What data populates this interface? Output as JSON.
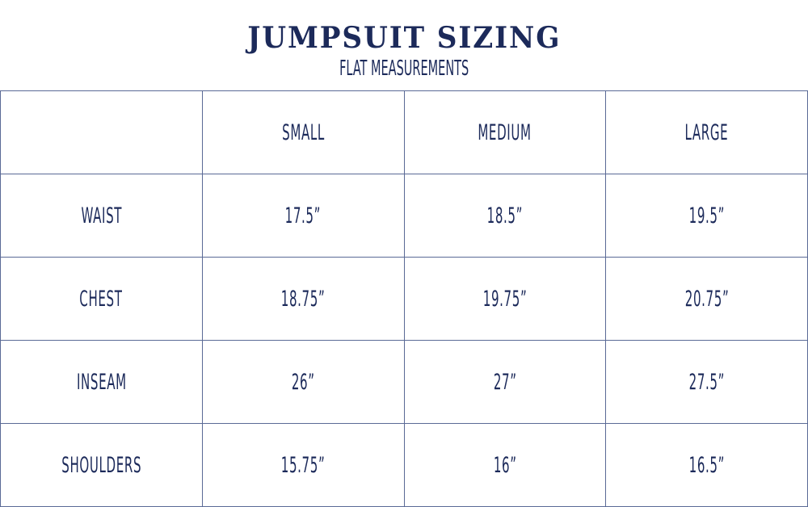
{
  "title": "JUMPSUIT SIZING",
  "subtitle": "FLAT MEASUREMENTS",
  "colors": {
    "text": "#1c2a5a",
    "grid": "#5a6a96"
  },
  "table": {
    "columns": [
      "",
      "SMALL",
      "MEDIUM",
      "LARGE"
    ],
    "rows": [
      {
        "label": "WAIST",
        "values": [
          "17.5”",
          "18.5”",
          "19.5”"
        ]
      },
      {
        "label": "CHEST",
        "values": [
          "18.75”",
          "19.75”",
          "20.75”"
        ]
      },
      {
        "label": "INSEAM",
        "values": [
          "26”",
          "27”",
          "27.5”"
        ]
      },
      {
        "label": "SHOULDERS",
        "values": [
          "15.75”",
          "16”",
          "16.5”"
        ]
      }
    ]
  }
}
